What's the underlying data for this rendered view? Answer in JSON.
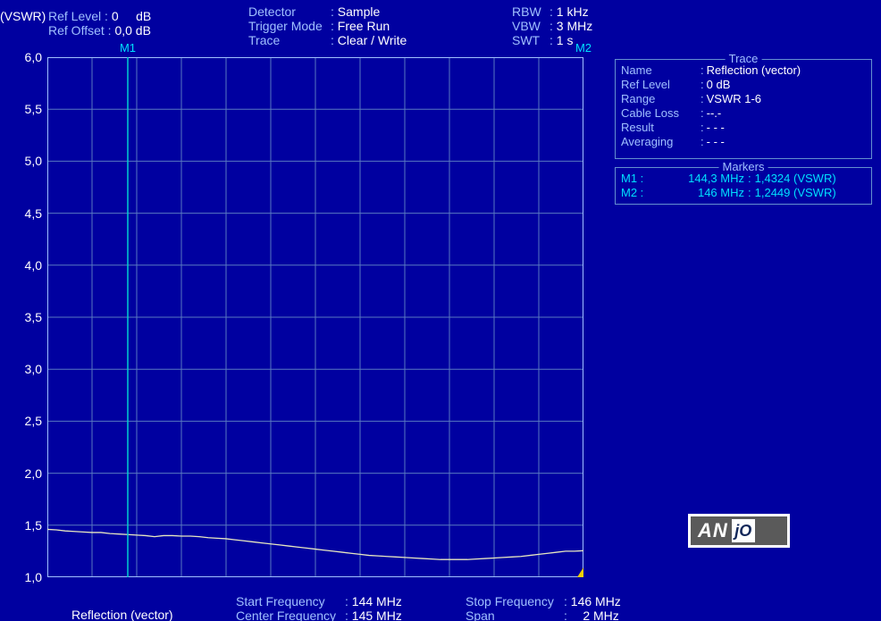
{
  "colors": {
    "background": "#0000a0",
    "grid": "#5878c0",
    "grid_border": "#a0c0ff",
    "text_white": "#ffffff",
    "text_blue": "#a0c0ff",
    "text_cyan": "#00e0ff",
    "trace": "#e8e8c0",
    "marker_line": "#00d0d0"
  },
  "header": {
    "unit_label": "(VSWR)",
    "left": [
      {
        "key": "Ref Level",
        "val": "0     dB"
      },
      {
        "key": "Ref Offset",
        "val": "0,0 dB"
      }
    ],
    "middle": [
      {
        "key": "Detector",
        "val": "Sample"
      },
      {
        "key": "Trigger Mode",
        "val": "Free Run"
      },
      {
        "key": "Trace",
        "val": "Clear / Write"
      }
    ],
    "right": [
      {
        "key": "RBW",
        "val": "1 kHz"
      },
      {
        "key": "VBW",
        "val": "3 MHz"
      },
      {
        "key": "SWT",
        "val": "1 s"
      }
    ]
  },
  "chart": {
    "type": "line",
    "ylim": [
      1.0,
      6.0
    ],
    "yticks": [
      1.0,
      1.5,
      2.0,
      2.5,
      3.0,
      3.5,
      4.0,
      4.5,
      5.0,
      5.5,
      6.0
    ],
    "ytick_labels": [
      "1,0",
      "1,5",
      "2,0",
      "2,5",
      "3,0",
      "3,5",
      "4,0",
      "4,5",
      "5,0",
      "5,5",
      "6,0"
    ],
    "xgrid_count": 12,
    "ygrid_count": 10,
    "x_range_mhz": [
      144,
      146
    ],
    "trace_values": [
      1.46,
      1.455,
      1.445,
      1.44,
      1.435,
      1.43,
      1.43,
      1.42,
      1.415,
      1.41,
      1.405,
      1.4,
      1.39,
      1.4,
      1.4,
      1.395,
      1.395,
      1.39,
      1.38,
      1.375,
      1.37,
      1.36,
      1.35,
      1.34,
      1.33,
      1.32,
      1.31,
      1.3,
      1.29,
      1.28,
      1.27,
      1.26,
      1.25,
      1.24,
      1.23,
      1.22,
      1.21,
      1.205,
      1.2,
      1.195,
      1.19,
      1.185,
      1.18,
      1.175,
      1.17,
      1.17,
      1.17,
      1.17,
      1.175,
      1.18,
      1.185,
      1.19,
      1.195,
      1.2,
      1.21,
      1.22,
      1.23,
      1.24,
      1.25,
      1.25,
      1.255
    ],
    "markers": [
      {
        "id": "M1",
        "x_mhz": 144.3,
        "line_color": "#00d0d0"
      },
      {
        "id": "M2",
        "x_mhz": 146.0,
        "triangle": true
      }
    ]
  },
  "trace_panel": {
    "title": "Trace",
    "rows": [
      {
        "key": "Name",
        "val": "Reflection (vector)"
      },
      {
        "key": "Ref Level",
        "val": "0        dB"
      },
      {
        "key": "Range",
        "val": "VSWR 1-6"
      },
      {
        "key": "Cable Loss",
        "val": "--.-"
      },
      {
        "key": "Result",
        "val": "- - -"
      },
      {
        "key": "Averaging",
        "val": "- - -"
      }
    ]
  },
  "markers_panel": {
    "title": "Markers",
    "rows": [
      {
        "id": "M1 :",
        "freq": "144,3 MHz",
        "val": "1,4324 (VSWR)",
        "color": "#00e0ff"
      },
      {
        "id": "M2 :",
        "freq": "146 MHz",
        "val": "1,2449 (VSWR)",
        "color": "#00e0ff"
      }
    ]
  },
  "footer": {
    "reflection": "Reflection (vector)",
    "items": [
      {
        "key": "Start Frequency",
        "val": "144 MHz"
      },
      {
        "key": "Center Frequency",
        "val": "145 MHz"
      },
      {
        "key": "Stop Frequency",
        "val": "146 MHz"
      },
      {
        "key": "Span",
        "val": "2 MHz"
      }
    ]
  },
  "logo": {
    "left": "AN",
    "right": "jO"
  }
}
